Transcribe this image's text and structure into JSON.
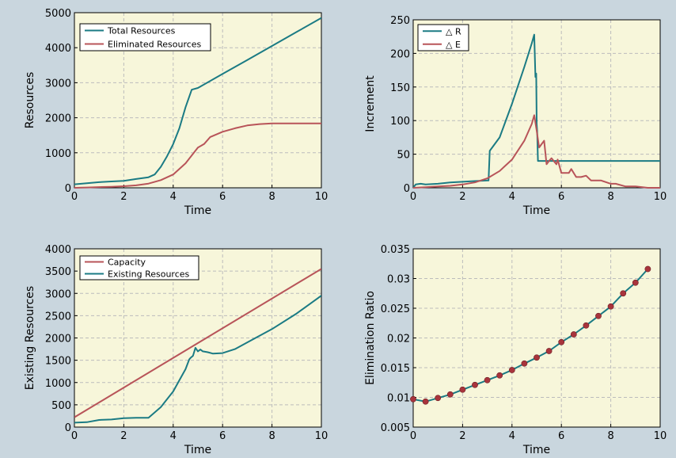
{
  "colors": {
    "figure_bg": "#c9d6de",
    "plot_bg": "#f7f6da",
    "teal": "#1b7b84",
    "red": "#b85459",
    "grid": "#bcbcbc",
    "marker": "#a8343c"
  },
  "chart_data": [
    {
      "type": "line",
      "xlabel": "Time",
      "ylabel": "Resources",
      "xlim": [
        0,
        10
      ],
      "ylim": [
        0,
        5000
      ],
      "xticks": [
        0,
        2,
        4,
        6,
        8,
        10
      ],
      "yticks": [
        0,
        1000,
        2000,
        3000,
        4000,
        5000
      ],
      "grid": true,
      "legend": "top-left",
      "series": [
        {
          "name": "Total Resources",
          "color": "#1b7b84",
          "x": [
            0,
            0.5,
            1,
            1.5,
            2,
            2.5,
            3,
            3.25,
            3.5,
            3.75,
            4,
            4.25,
            4.5,
            4.75,
            5,
            6,
            7,
            8,
            9,
            10
          ],
          "y": [
            100,
            130,
            160,
            180,
            200,
            250,
            300,
            380,
            600,
            900,
            1250,
            1700,
            2300,
            2800,
            2850,
            3250,
            3650,
            4050,
            4450,
            4850
          ]
        },
        {
          "name": "Eliminated Resources",
          "color": "#b85459",
          "x": [
            0,
            0.5,
            1,
            1.5,
            2,
            2.5,
            3,
            3.5,
            4,
            4.5,
            5,
            5.25,
            5.5,
            6,
            6.5,
            7,
            7.5,
            8,
            9,
            10
          ],
          "y": [
            0,
            10,
            20,
            30,
            45,
            70,
            120,
            220,
            380,
            700,
            1150,
            1250,
            1450,
            1600,
            1700,
            1780,
            1820,
            1840,
            1840,
            1840
          ]
        }
      ]
    },
    {
      "type": "line",
      "xlabel": "Time",
      "ylabel": "Increment",
      "xlim": [
        0,
        10
      ],
      "ylim": [
        0,
        250
      ],
      "xticks": [
        0,
        2,
        4,
        6,
        8,
        10
      ],
      "yticks": [
        0,
        50,
        100,
        150,
        200,
        250
      ],
      "grid": true,
      "legend": "top-left",
      "series": [
        {
          "name": "△ R",
          "color": "#1b7b84",
          "x": [
            0,
            0.1,
            0.3,
            0.5,
            1,
            1.5,
            2,
            2.5,
            3,
            3.05,
            3.1,
            3.5,
            4,
            4.5,
            4.8,
            4.9,
            4.95,
            4.98,
            5,
            5.02,
            5.05,
            5.1,
            6,
            7,
            8,
            9,
            10
          ],
          "y": [
            0,
            5,
            6,
            5,
            6,
            8,
            9,
            10,
            11,
            11,
            55,
            75,
            125,
            180,
            215,
            228,
            165,
            170,
            95,
            85,
            40,
            40,
            40,
            40,
            40,
            40,
            40
          ]
        },
        {
          "name": "△ E",
          "color": "#b85459",
          "x": [
            0,
            0.5,
            1,
            1.5,
            2,
            2.5,
            3,
            3.5,
            4,
            4.5,
            4.8,
            4.9,
            5,
            5.1,
            5.2,
            5.3,
            5.4,
            5.5,
            5.6,
            5.8,
            5.85,
            6,
            6.1,
            6.3,
            6.4,
            6.6,
            6.8,
            7,
            7.2,
            7.4,
            7.6,
            8,
            8.2,
            8.6,
            9,
            9.5,
            10
          ],
          "y": [
            0,
            1,
            2,
            3,
            5,
            8,
            14,
            25,
            42,
            70,
            95,
            108,
            85,
            60,
            65,
            70,
            35,
            40,
            44,
            35,
            42,
            22,
            22,
            22,
            28,
            16,
            16,
            18,
            11,
            11,
            11,
            6,
            6,
            2,
            2,
            0,
            0
          ]
        }
      ]
    },
    {
      "type": "line",
      "xlabel": "Time",
      "ylabel": "Existing Resources",
      "xlim": [
        0,
        10
      ],
      "ylim": [
        0,
        4000
      ],
      "xticks": [
        0,
        2,
        4,
        6,
        8,
        10
      ],
      "yticks": [
        0,
        500,
        1000,
        1500,
        2000,
        2500,
        3000,
        3500,
        4000
      ],
      "grid": true,
      "legend": "top-left",
      "series": [
        {
          "name": "Capacity",
          "color": "#b85459",
          "x": [
            0,
            10
          ],
          "y": [
            220,
            3550
          ]
        },
        {
          "name": "Existing Resources",
          "color": "#1b7b84",
          "x": [
            0,
            0.5,
            1,
            1.5,
            2,
            2.5,
            3,
            3.5,
            4,
            4.25,
            4.5,
            4.65,
            4.7,
            4.8,
            4.9,
            5.0,
            5.1,
            5.2,
            5.4,
            5.6,
            6,
            6.5,
            7,
            8,
            9,
            10
          ],
          "y": [
            100,
            110,
            160,
            170,
            200,
            210,
            210,
            450,
            800,
            1050,
            1300,
            1520,
            1550,
            1600,
            1780,
            1700,
            1740,
            1700,
            1680,
            1650,
            1660,
            1750,
            1900,
            2200,
            2550,
            2950
          ]
        }
      ]
    },
    {
      "type": "line",
      "xlabel": "Time",
      "ylabel": "Elimination Ratio",
      "xlim": [
        0,
        10
      ],
      "ylim": [
        0.005,
        0.035
      ],
      "xticks": [
        0,
        2,
        4,
        6,
        8,
        10
      ],
      "yticks": [
        0.005,
        0.01,
        0.015,
        0.02,
        0.025,
        0.03,
        0.035
      ],
      "ytick_labels": [
        "0.005",
        "0.01",
        "0.015",
        "0.02",
        "0.025",
        "0.03",
        "0.035"
      ],
      "grid": true,
      "markers": true,
      "series": [
        {
          "color": "#1b7b84",
          "marker_color": "#a8343c",
          "x": [
            0,
            0.5,
            1,
            1.5,
            2,
            2.5,
            3,
            3.5,
            4,
            4.5,
            5,
            5.5,
            6,
            6.5,
            7,
            7.5,
            8,
            8.5,
            9,
            9.5
          ],
          "y": [
            0.0097,
            0.0093,
            0.0099,
            0.0105,
            0.0113,
            0.0121,
            0.0129,
            0.0137,
            0.0146,
            0.0157,
            0.0167,
            0.0178,
            0.0193,
            0.0206,
            0.0221,
            0.0237,
            0.0253,
            0.0275,
            0.0293,
            0.0316
          ]
        }
      ]
    }
  ]
}
